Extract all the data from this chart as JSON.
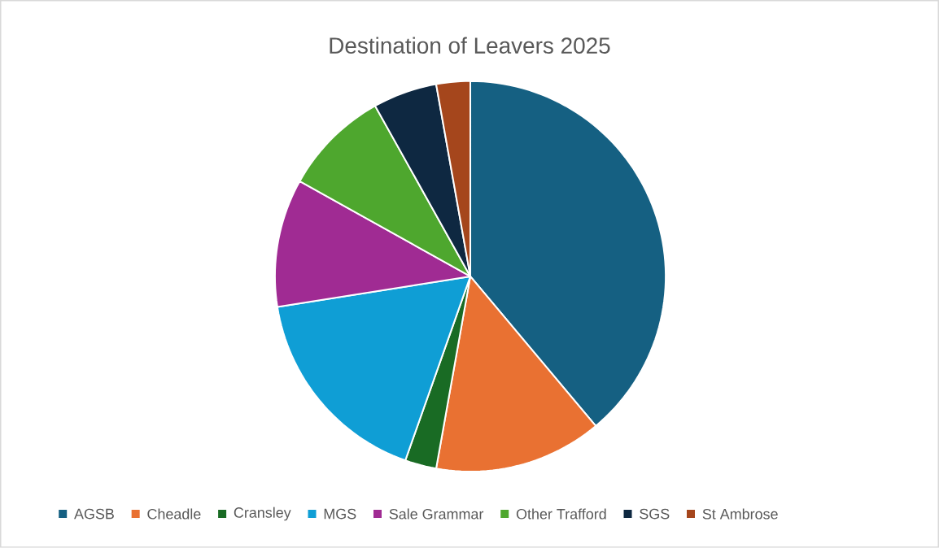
{
  "chart_data": {
    "type": "pie",
    "title": "Destination of Leavers 2025",
    "categories": [
      "AGSB",
      "Cheadle",
      "Cransley",
      "MGS",
      "Sale Grammar",
      "Other Trafford",
      "SGS",
      "St Ambrose"
    ],
    "values": [
      38.9,
      13.9,
      2.6,
      17.1,
      10.6,
      8.8,
      5.3,
      2.8
    ],
    "colors": [
      "#156082",
      "#e97132",
      "#196b24",
      "#0f9ed5",
      "#a02b93",
      "#4ea72e",
      "#0e2841",
      "#a5461c"
    ],
    "legend": "bottom"
  }
}
